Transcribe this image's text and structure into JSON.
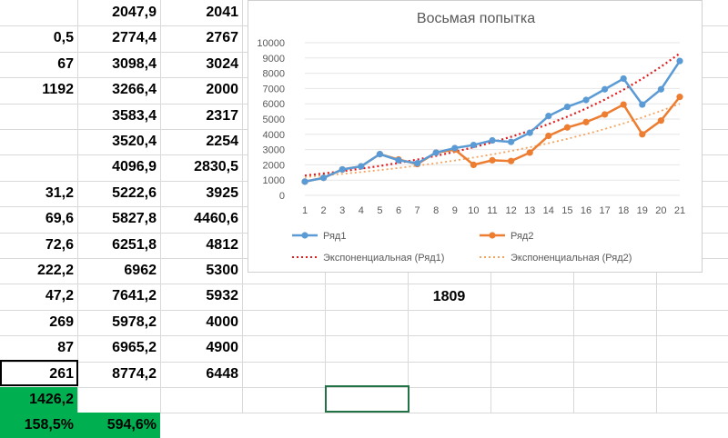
{
  "columns": {
    "a": [
      "",
      "0,5",
      "67",
      "1192",
      "",
      "",
      "",
      "31,2",
      "69,6",
      "72,6",
      "222,2",
      "47,2",
      "269",
      "87",
      "261",
      "1426,2",
      "158,5%"
    ],
    "b": [
      "2047,9",
      "2774,4",
      "3098,4",
      "3266,4",
      "3583,4",
      "3520,4",
      "4096,9",
      "5222,6",
      "5827,8",
      "6251,8",
      "6962",
      "7641,2",
      "5978,2",
      "6965,2",
      "8774,2",
      "",
      "594,6%"
    ],
    "c": [
      "2041",
      "2767",
      "3024",
      "2000",
      "2317",
      "2254",
      "2830,5",
      "3925",
      "4460,6",
      "4812",
      "5300",
      "5932",
      "4000",
      "4900",
      "6448",
      "",
      ""
    ]
  },
  "extra_cell": "1809",
  "colors": {
    "green": "#00b050",
    "series1": "#5b9bd5",
    "series2": "#ed7d31",
    "trend1": "#e31a1c",
    "trend2": "#f4a460"
  },
  "chart_data": {
    "type": "line",
    "title": "Восьмая попытка",
    "categories": [
      "1",
      "2",
      "3",
      "4",
      "5",
      "6",
      "7",
      "8",
      "9",
      "10",
      "11",
      "12",
      "13",
      "14",
      "15",
      "16",
      "17",
      "18",
      "19",
      "20",
      "21"
    ],
    "ylim": [
      0,
      10000
    ],
    "yticks": [
      "0",
      "1000",
      "2000",
      "3000",
      "4000",
      "5000",
      "6000",
      "7000",
      "8000",
      "9000",
      "10000"
    ],
    "series": [
      {
        "name": "Ряд1",
        "values": [
          900,
          1150,
          1700,
          1900,
          2700,
          2300,
          2100,
          2800,
          3100,
          3300,
          3600,
          3500,
          4100,
          5200,
          5800,
          6250,
          6950,
          7650,
          5950,
          6950,
          8800
        ]
      },
      {
        "name": "Ряд2",
        "values": [
          900,
          1150,
          1700,
          1900,
          2700,
          2350,
          2050,
          2800,
          3000,
          2000,
          2300,
          2250,
          2800,
          3900,
          4450,
          4800,
          5300,
          5950,
          4000,
          4900,
          6450
        ]
      }
    ],
    "trendlines": [
      {
        "name": "Экспоненциальная (Ряд1)",
        "start": 1300,
        "end": 9300
      },
      {
        "name": "Экспоненциальная (Ряд2)",
        "start": 1200,
        "end": 6000
      }
    ],
    "legend_position": "bottom"
  }
}
